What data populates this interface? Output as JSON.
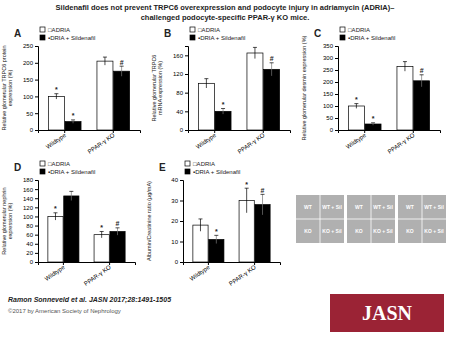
{
  "title": "Sildenafil does not prevent TRPC6 overexpression and podocyte injury in adriamycin (ADRIA)–\nchallenged podocyte-specific PPAR-γ KO mice.",
  "annotations": [
    {
      "text": "Ramon Sonneveld et al. JASN 2017;28:1491-1505"
    },
    {
      "text": "©2017 by American Society of Nephrology",
      "color": "#555555"
    },
    {
      "text": "JASN",
      "color": "#9b2335"
    }
  ],
  "chart_data": [
    {
      "type": "bar",
      "title": "A",
      "ylabel": "Relative glomerular TRPC6 protein\nexpression (%)",
      "categories": [
        "Wildtype",
        "PPAR-γ KO"
      ],
      "ylim": [
        0,
        250
      ],
      "yticks": [
        0,
        50,
        100,
        150,
        200,
        250
      ],
      "series": [
        {
          "name": "□ADRIA",
          "color": "white",
          "values": [
            100,
            205
          ],
          "errors": [
            8,
            12
          ],
          "significance": [
            "*",
            null
          ]
        },
        {
          "name": "▪DRIA + Sildenafil",
          "color": "black",
          "values": [
            25,
            175
          ],
          "errors": [
            5,
            15
          ],
          "significance": [
            "*",
            "#"
          ]
        }
      ],
      "annotations": [
        "WT",
        "WT + Sil",
        "KO",
        "KO + Sil"
      ]
    },
    {
      "type": "bar",
      "title": "B",
      "ylabel": "Relative glomerular TRPC6\nmRNA expression (%)",
      "categories": [
        "Wildtype",
        "PPAR-γ KO"
      ],
      "ylim": [
        0,
        180
      ],
      "yticks": [
        0,
        40,
        80,
        120,
        160
      ],
      "series": [
        {
          "name": "□ADRIA",
          "color": "white",
          "values": [
            100,
            165
          ],
          "errors": [
            10,
            12
          ],
          "significance": [
            null,
            null
          ]
        },
        {
          "name": "▪DRIA + Sildenafil",
          "color": "black",
          "values": [
            40,
            130
          ],
          "errors": [
            6,
            14
          ],
          "significance": [
            "*",
            "#"
          ]
        }
      ]
    },
    {
      "type": "bar",
      "title": "C",
      "ylabel": "Relative glomerular desmin expression (%)",
      "categories": [
        "Wildtype",
        "PPAR-γ KO"
      ],
      "ylim": [
        0,
        350
      ],
      "yticks": [
        0,
        50,
        100,
        150,
        200,
        250,
        300,
        350
      ],
      "series": [
        {
          "name": "□ADRIA",
          "color": "white",
          "values": [
            100,
            265
          ],
          "errors": [
            10,
            20
          ],
          "significance": [
            "*",
            null
          ]
        },
        {
          "name": "▪DRIA + Sildenafil",
          "color": "black",
          "values": [
            25,
            205
          ],
          "errors": [
            5,
            25
          ],
          "significance": [
            "*",
            "#"
          ]
        }
      ],
      "annotations": [
        "WT",
        "WT + Sil",
        "KO",
        "KO + Sil"
      ]
    },
    {
      "type": "bar",
      "title": "D",
      "ylabel": "Relative glomerular nephrin\nexpression (%)",
      "categories": [
        "Wildtype",
        "PPAR-γ KO"
      ],
      "ylim": [
        0,
        180
      ],
      "yticks": [
        0,
        20,
        40,
        60,
        80,
        100,
        120,
        140,
        160,
        180
      ],
      "series": [
        {
          "name": "□ADRIA",
          "color": "white",
          "values": [
            100,
            60
          ],
          "errors": [
            8,
            7
          ],
          "significance": [
            "*",
            "*"
          ]
        },
        {
          "name": "▪DRIA + Sildenafil",
          "color": "black",
          "values": [
            145,
            67
          ],
          "errors": [
            10,
            8
          ],
          "significance": [
            null,
            "#"
          ]
        }
      ],
      "annotations": [
        "WT",
        "WT + Sil",
        "KO",
        "KO + Sil"
      ]
    },
    {
      "type": "bar",
      "title": "E",
      "ylabel": "Albumin/Creatinine ratio (μg/mA)",
      "categories": [
        "Wildtype",
        "PPAR-γ KO"
      ],
      "ylim": [
        0,
        40
      ],
      "yticks": [
        0,
        10,
        20,
        30,
        40
      ],
      "series": [
        {
          "name": "□ADRIA",
          "color": "white",
          "values": [
            18,
            30
          ],
          "errors": [
            3,
            6
          ],
          "significance": [
            null,
            "*"
          ]
        },
        {
          "name": "▪DRIA + Sildenafil",
          "color": "black",
          "values": [
            11,
            28
          ],
          "errors": [
            2,
            5
          ],
          "significance": [
            "*",
            "#"
          ]
        }
      ]
    }
  ]
}
